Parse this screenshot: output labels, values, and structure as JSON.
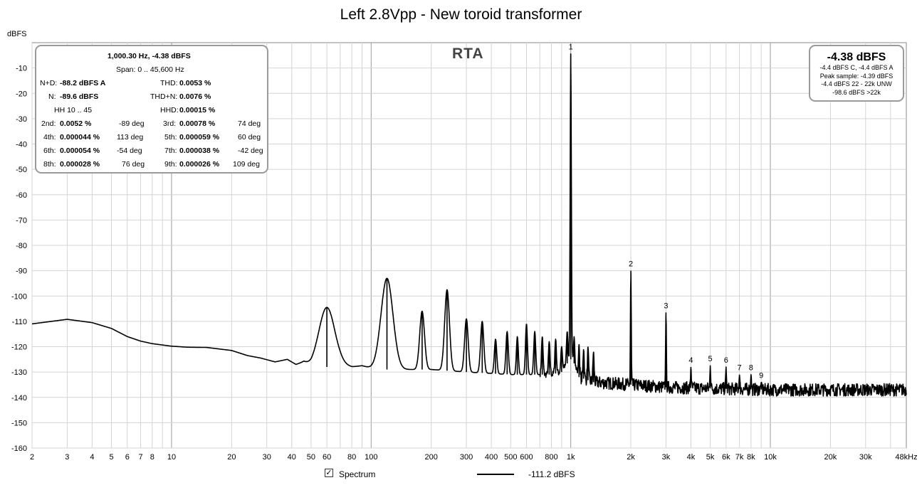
{
  "chart_data": {
    "type": "line",
    "title": "Left 2.8Vpp - New toroid transformer",
    "ylabel": "dBFS",
    "xscale": "log",
    "xlim": [
      2,
      48000
    ],
    "ylim": [
      -160,
      0
    ],
    "grid": true,
    "overlay_label": "RTA",
    "y_ticks": [
      -10,
      -20,
      -30,
      -40,
      -50,
      -60,
      -70,
      -80,
      -90,
      -100,
      -110,
      -120,
      -130,
      -140,
      -150,
      -160
    ],
    "x_ticks": [
      {
        "v": 2,
        "label": "2"
      },
      {
        "v": 3,
        "label": "3"
      },
      {
        "v": 4,
        "label": "4"
      },
      {
        "v": 5,
        "label": "5"
      },
      {
        "v": 6,
        "label": "6"
      },
      {
        "v": 7,
        "label": "7"
      },
      {
        "v": 8,
        "label": "8"
      },
      {
        "v": 10,
        "label": "10"
      },
      {
        "v": 20,
        "label": "20"
      },
      {
        "v": 30,
        "label": "30"
      },
      {
        "v": 40,
        "label": "40"
      },
      {
        "v": 50,
        "label": "50"
      },
      {
        "v": 60,
        "label": "60"
      },
      {
        "v": 80,
        "label": "80"
      },
      {
        "v": 100,
        "label": "100"
      },
      {
        "v": 200,
        "label": "200"
      },
      {
        "v": 300,
        "label": "300"
      },
      {
        "v": 400,
        "label": "400"
      },
      {
        "v": 500,
        "label": "500"
      },
      {
        "v": 600,
        "label": "600"
      },
      {
        "v": 800,
        "label": "800"
      },
      {
        "v": 1000,
        "label": "1k"
      },
      {
        "v": 2000,
        "label": "2k"
      },
      {
        "v": 3000,
        "label": "3k"
      },
      {
        "v": 4000,
        "label": "4k"
      },
      {
        "v": 5000,
        "label": "5k"
      },
      {
        "v": 6000,
        "label": "6k"
      },
      {
        "v": 7000,
        "label": "7k"
      },
      {
        "v": 8000,
        "label": "8k"
      },
      {
        "v": 10000,
        "label": "10k"
      },
      {
        "v": 20000,
        "label": "20k"
      },
      {
        "v": 30000,
        "label": "30k"
      },
      {
        "v": 48000,
        "label": "48kHz"
      }
    ],
    "series": [
      {
        "name": "Spectrum",
        "color": "#000000",
        "baseline": [
          [
            2,
            -111
          ],
          [
            3,
            -109.2
          ],
          [
            4,
            -110.5
          ],
          [
            5,
            -112.8
          ],
          [
            6,
            -116
          ],
          [
            7,
            -117.8
          ],
          [
            8,
            -118.8
          ],
          [
            10,
            -119.8
          ],
          [
            12,
            -120.2
          ],
          [
            15,
            -120.3
          ],
          [
            20,
            -121.5
          ],
          [
            24,
            -123.5
          ],
          [
            28,
            -124.5
          ],
          [
            33,
            -126
          ],
          [
            38,
            -125
          ],
          [
            42,
            -127
          ],
          [
            46,
            -126
          ],
          [
            50,
            -128
          ],
          [
            55,
            -128
          ],
          [
            65,
            -128
          ],
          [
            70,
            -127.5
          ],
          [
            80,
            -128
          ],
          [
            90,
            -127.5
          ],
          [
            100,
            -128.5
          ],
          [
            110,
            -129
          ],
          [
            150,
            -129
          ],
          [
            200,
            -129
          ],
          [
            300,
            -130
          ],
          [
            500,
            -131
          ],
          [
            800,
            -131
          ],
          [
            900,
            -130
          ],
          [
            950,
            -127
          ],
          [
            1000,
            -125
          ],
          [
            1050,
            -127
          ],
          [
            1100,
            -132
          ],
          [
            1300,
            -134
          ],
          [
            2000,
            -135
          ],
          [
            3000,
            -136
          ],
          [
            5000,
            -136.5
          ],
          [
            10000,
            -137
          ],
          [
            20000,
            -137
          ],
          [
            48000,
            -137
          ]
        ],
        "peaks": [
          {
            "f": 60,
            "db": -104.5,
            "w": 0.04
          },
          {
            "f": 120,
            "db": -93,
            "w": 0.03
          },
          {
            "f": 180,
            "db": -106,
            "w": 0.012
          },
          {
            "f": 240,
            "db": -97.5,
            "w": 0.012
          },
          {
            "f": 300,
            "db": -109,
            "w": 0.009
          },
          {
            "f": 360,
            "db": -110,
            "w": 0.008
          },
          {
            "f": 420,
            "db": -117,
            "w": 0.006
          },
          {
            "f": 480,
            "db": -114,
            "w": 0.006
          },
          {
            "f": 540,
            "db": -116,
            "w": 0.005
          },
          {
            "f": 600,
            "db": -111,
            "w": 0.005
          },
          {
            "f": 660,
            "db": -114,
            "w": 0.005
          },
          {
            "f": 720,
            "db": -116,
            "w": 0.004
          },
          {
            "f": 780,
            "db": -118,
            "w": 0.004
          },
          {
            "f": 840,
            "db": -117,
            "w": 0.004
          },
          {
            "f": 900,
            "db": -120,
            "w": 0.004
          },
          {
            "f": 960,
            "db": -114,
            "w": 0.004
          },
          {
            "f": 1000,
            "db": -4.38,
            "w": 0.003
          },
          {
            "f": 1040,
            "db": -116,
            "w": 0.003
          },
          {
            "f": 1100,
            "db": -119,
            "w": 0.003
          },
          {
            "f": 1160,
            "db": -121,
            "w": 0.003
          },
          {
            "f": 1220,
            "db": -120,
            "w": 0.003
          },
          {
            "f": 1300,
            "db": -122,
            "w": 0.003
          },
          {
            "f": 2000,
            "db": -90,
            "w": 0.002
          },
          {
            "f": 3000,
            "db": -106.5,
            "w": 0.002
          },
          {
            "f": 4000,
            "db": -128,
            "w": 0.002
          },
          {
            "f": 5000,
            "db": -127.5,
            "w": 0.002
          },
          {
            "f": 6000,
            "db": -128,
            "w": 0.002
          },
          {
            "f": 7000,
            "db": -131,
            "w": 0.002
          },
          {
            "f": 8000,
            "db": -131,
            "w": 0.002
          },
          {
            "f": 9000,
            "db": -134,
            "w": 0.002
          }
        ]
      }
    ],
    "harmonic_labels": [
      {
        "f": 1000,
        "db": -4.38,
        "label": "1"
      },
      {
        "f": 2000,
        "db": -90,
        "label": "2"
      },
      {
        "f": 3000,
        "db": -106.5,
        "label": "3"
      },
      {
        "f": 4000,
        "db": -128,
        "label": "4"
      },
      {
        "f": 5000,
        "db": -127.5,
        "label": "5"
      },
      {
        "f": 6000,
        "db": -128,
        "label": "6"
      },
      {
        "f": 7000,
        "db": -131,
        "label": "7"
      },
      {
        "f": 8000,
        "db": -131,
        "label": "8"
      },
      {
        "f": 9000,
        "db": -134,
        "label": "9"
      }
    ]
  },
  "info": {
    "header": "1,000.30 Hz, -4.38 dBFS",
    "span": "Span: 0 .. 45,600 Hz",
    "nd_label": "N+D:",
    "nd_value": "-88.2 dBFS A",
    "thd_label": "THD:",
    "thd_value": "0.0053 %",
    "n_label": "N:",
    "n_value": "-89.6 dBFS",
    "thdn_label": "THD+N:",
    "thdn_value": "0.0076 %",
    "hh_label": "HH 10 .. 45",
    "hhd_label": "HHD:",
    "hhd_value": "0.00015 %",
    "harmonics": [
      {
        "label": "2nd:",
        "pct": "0.0052 %",
        "deg": "-89 deg"
      },
      {
        "label": "3rd:",
        "pct": "0.00078 %",
        "deg": "74 deg"
      },
      {
        "label": "4th:",
        "pct": "0.000044 %",
        "deg": "113 deg"
      },
      {
        "label": "5th:",
        "pct": "0.000059 %",
        "deg": "60 deg"
      },
      {
        "label": "6th:",
        "pct": "0.000054 %",
        "deg": "-54 deg"
      },
      {
        "label": "7th:",
        "pct": "0.000038 %",
        "deg": "-42 deg"
      },
      {
        "label": "8th:",
        "pct": "0.000028 %",
        "deg": "76 deg"
      },
      {
        "label": "9th:",
        "pct": "0.000026 %",
        "deg": "109 deg"
      }
    ]
  },
  "level": {
    "value": "-4.38 dBFS",
    "line1": "-4.4 dBFS C, -4.4 dBFS A",
    "line2": "Peak sample: -4.39 dBFS",
    "line3": "-4.4 dBFS 22 - 22k UNW",
    "line4": "-98.6 dBFS >22k"
  },
  "legend": {
    "checkbox_mark": "✓",
    "series_label": "Spectrum",
    "value": "-111.2 dBFS"
  }
}
